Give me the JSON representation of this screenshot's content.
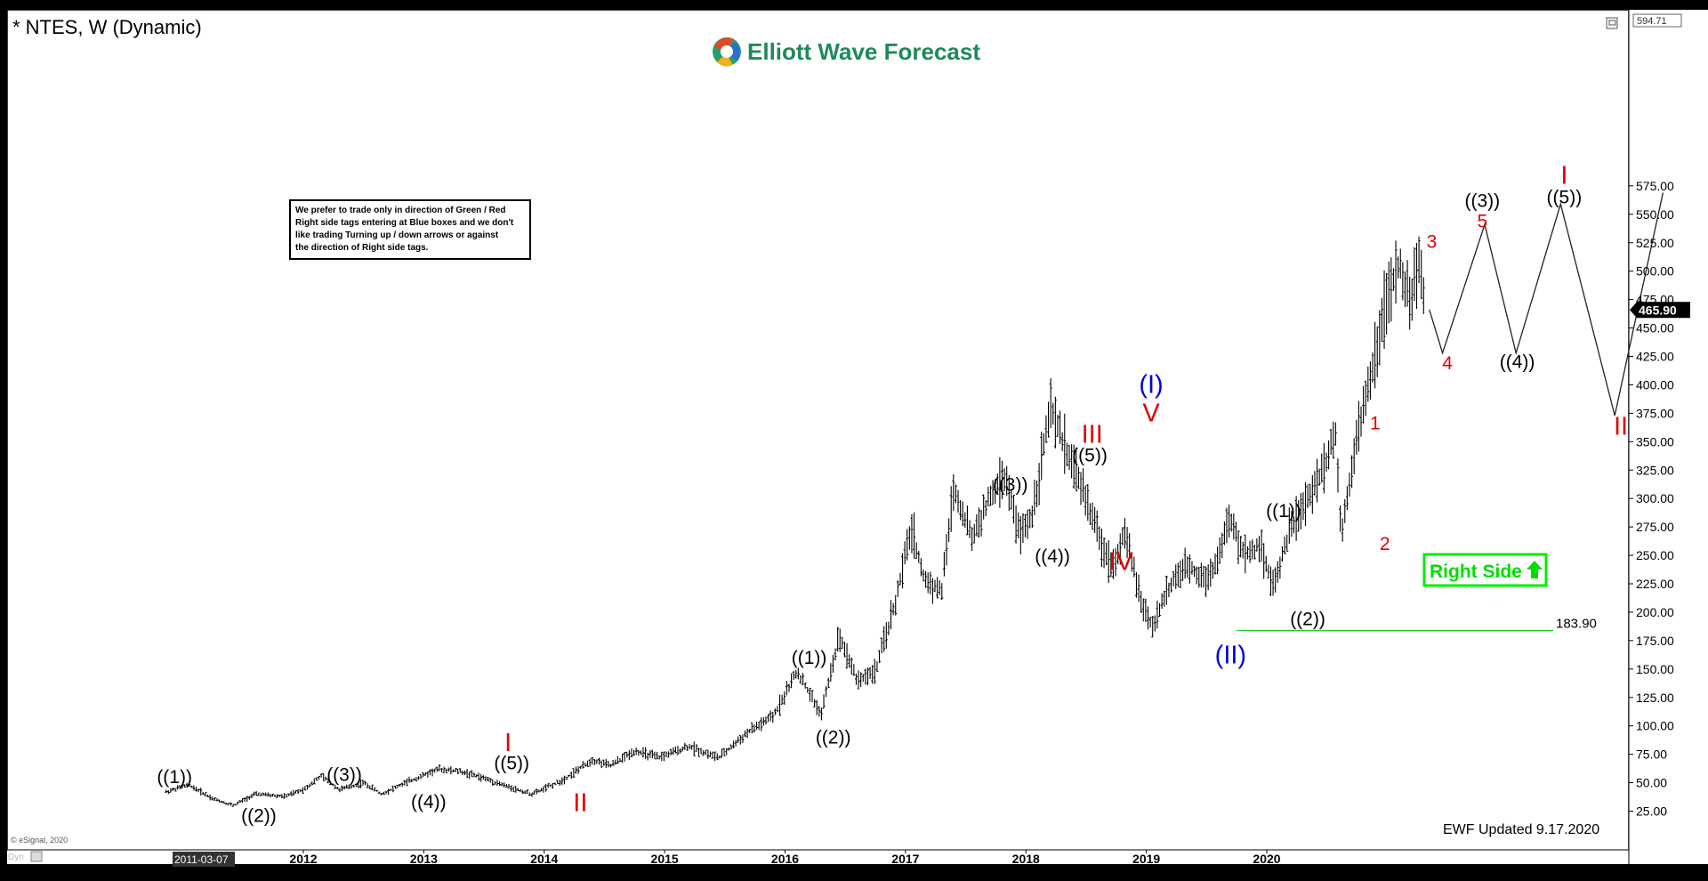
{
  "header": {
    "symbol_title": "* NTES, W (Dynamic)",
    "brand": "Elliott Wave Forecast",
    "disclaimer_lines": [
      "We prefer to trade only in direction of Green / Red",
      "Right side tags entering at Blue boxes and we don't",
      "like trading Turning up / down arrows or against",
      "the direction of Right side tags."
    ],
    "footer_updated": "EWF Updated 9.17.2020",
    "copyright": "© eSignal, 2020",
    "dyn_label": "Dyn",
    "cursor_date": "2011-03-07"
  },
  "colors": {
    "background": "#ffffff",
    "frame": "#000000",
    "price_bars": "#000000",
    "wave_label_black": "#000000",
    "wave_label_red": "#e00000",
    "wave_label_blue": "#0000dd",
    "support_line": "#22cc22",
    "right_side_tag": "#00ee00",
    "brand_text": "#1e8a5a"
  },
  "chart_data": {
    "type": "line",
    "title": "* NTES, W (Dynamic)",
    "xlabel": "",
    "ylabel": "",
    "ylim": [
      13,
      595
    ],
    "grid": false,
    "x_tick_labels": [
      "2012",
      "2013",
      "2014",
      "2015",
      "2016",
      "2017",
      "2018",
      "2019",
      "2020"
    ],
    "x_tick_values": [
      2012,
      2013,
      2014,
      2015,
      2016,
      2017,
      2018,
      2019,
      2020
    ],
    "y_tick_labels": [
      "25.00",
      "50.00",
      "75.00",
      "100.00",
      "125.00",
      "150.00",
      "175.00",
      "200.00",
      "225.00",
      "250.00",
      "275.00",
      "300.00",
      "325.00",
      "350.00",
      "375.00",
      "400.00",
      "425.00",
      "450.00",
      "475.00",
      "500.00",
      "525.00",
      "550.00",
      "575.00"
    ],
    "y_tick_values": [
      25,
      50,
      75,
      100,
      125,
      150,
      175,
      200,
      225,
      250,
      275,
      300,
      325,
      350,
      375,
      400,
      425,
      450,
      475,
      500,
      525,
      550,
      575
    ],
    "price_path": [
      {
        "t": 2010.86,
        "p": 42
      },
      {
        "t": 2011.05,
        "p": 48
      },
      {
        "t": 2011.25,
        "p": 36
      },
      {
        "t": 2011.42,
        "p": 30
      },
      {
        "t": 2011.6,
        "p": 40
      },
      {
        "t": 2011.85,
        "p": 38
      },
      {
        "t": 2012.0,
        "p": 44
      },
      {
        "t": 2012.15,
        "p": 56
      },
      {
        "t": 2012.3,
        "p": 44
      },
      {
        "t": 2012.5,
        "p": 50
      },
      {
        "t": 2012.65,
        "p": 40
      },
      {
        "t": 2012.85,
        "p": 50
      },
      {
        "t": 2013.12,
        "p": 62
      },
      {
        "t": 2013.3,
        "p": 60
      },
      {
        "t": 2013.5,
        "p": 54
      },
      {
        "t": 2013.77,
        "p": 44
      },
      {
        "t": 2013.9,
        "p": 40
      },
      {
        "t": 2014.15,
        "p": 52
      },
      {
        "t": 2014.4,
        "p": 70
      },
      {
        "t": 2014.55,
        "p": 65
      },
      {
        "t": 2014.75,
        "p": 78
      },
      {
        "t": 2014.95,
        "p": 72
      },
      {
        "t": 2015.2,
        "p": 82
      },
      {
        "t": 2015.45,
        "p": 72
      },
      {
        "t": 2015.7,
        "p": 95
      },
      {
        "t": 2015.9,
        "p": 108
      },
      {
        "t": 2016.1,
        "p": 148
      },
      {
        "t": 2016.3,
        "p": 110
      },
      {
        "t": 2016.45,
        "p": 180
      },
      {
        "t": 2016.6,
        "p": 140
      },
      {
        "t": 2016.75,
        "p": 148
      },
      {
        "t": 2016.92,
        "p": 210
      },
      {
        "t": 2017.05,
        "p": 275
      },
      {
        "t": 2017.15,
        "p": 230
      },
      {
        "t": 2017.3,
        "p": 218
      },
      {
        "t": 2017.4,
        "p": 310
      },
      {
        "t": 2017.55,
        "p": 265
      },
      {
        "t": 2017.7,
        "p": 300
      },
      {
        "t": 2017.82,
        "p": 320
      },
      {
        "t": 2017.95,
        "p": 268
      },
      {
        "t": 2018.05,
        "p": 285
      },
      {
        "t": 2018.2,
        "p": 378
      },
      {
        "t": 2018.35,
        "p": 340
      },
      {
        "t": 2018.5,
        "p": 300
      },
      {
        "t": 2018.62,
        "p": 262
      },
      {
        "t": 2018.72,
        "p": 240
      },
      {
        "t": 2018.82,
        "p": 270
      },
      {
        "t": 2018.97,
        "p": 205
      },
      {
        "t": 2019.05,
        "p": 188
      },
      {
        "t": 2019.2,
        "p": 225
      },
      {
        "t": 2019.35,
        "p": 240
      },
      {
        "t": 2019.5,
        "p": 230
      },
      {
        "t": 2019.6,
        "p": 248
      },
      {
        "t": 2019.68,
        "p": 282
      },
      {
        "t": 2019.82,
        "p": 250
      },
      {
        "t": 2019.95,
        "p": 260
      },
      {
        "t": 2020.05,
        "p": 222
      },
      {
        "t": 2020.2,
        "p": 275
      },
      {
        "t": 2020.35,
        "p": 300
      },
      {
        "t": 2020.48,
        "p": 330
      },
      {
        "t": 2020.57,
        "p": 360
      },
      {
        "t": 2020.62,
        "p": 268
      },
      {
        "t": 2020.72,
        "p": 340
      },
      {
        "t": 2020.85,
        "p": 400
      },
      {
        "t": 2020.96,
        "p": 460
      },
      {
        "t": 2021.1,
        "p": 505
      },
      {
        "t": 2021.2,
        "p": 470
      },
      {
        "t": 2021.26,
        "p": 518
      },
      {
        "t": 2021.31,
        "p": 466
      }
    ],
    "series": [
      {
        "name": "projection",
        "points": [
          {
            "t": 2021.35,
            "p": 466
          },
          {
            "t": 2021.46,
            "p": 428
          },
          {
            "t": 2021.81,
            "p": 541
          },
          {
            "t": 2022.07,
            "p": 428
          },
          {
            "t": 2022.44,
            "p": 559
          },
          {
            "t": 2022.89,
            "p": 373
          },
          {
            "t": 2023.29,
            "p": 569
          }
        ]
      }
    ],
    "annotations": [
      {
        "text": "((1))",
        "t": 2010.93,
        "p": 54,
        "color": "black",
        "size": "m"
      },
      {
        "text": "((2))",
        "t": 2011.63,
        "p": 20,
        "color": "black",
        "size": "m"
      },
      {
        "text": "((3))",
        "t": 2012.34,
        "p": 56,
        "color": "black",
        "size": "m"
      },
      {
        "text": "((4))",
        "t": 2013.04,
        "p": 32,
        "color": "black",
        "size": "m"
      },
      {
        "text": "((5))",
        "t": 2013.73,
        "p": 66,
        "color": "black",
        "size": "m"
      },
      {
        "text": "I",
        "t": 2013.7,
        "p": 84,
        "color": "red",
        "size": "l"
      },
      {
        "text": "II",
        "t": 2014.3,
        "p": 31,
        "color": "red",
        "size": "l"
      },
      {
        "text": "((1))",
        "t": 2016.2,
        "p": 159,
        "color": "black",
        "size": "m"
      },
      {
        "text": "((2))",
        "t": 2016.4,
        "p": 89,
        "color": "black",
        "size": "m"
      },
      {
        "text": "((3))",
        "t": 2017.87,
        "p": 311,
        "color": "black",
        "size": "m"
      },
      {
        "text": "((4))",
        "t": 2018.22,
        "p": 248,
        "color": "black",
        "size": "m"
      },
      {
        "text": "((5))",
        "t": 2018.53,
        "p": 337,
        "color": "black",
        "size": "m"
      },
      {
        "text": "III",
        "t": 2018.55,
        "p": 355,
        "color": "red",
        "size": "l"
      },
      {
        "text": "IV",
        "t": 2018.79,
        "p": 243,
        "color": "red",
        "size": "l"
      },
      {
        "text": "(I)",
        "t": 2019.04,
        "p": 399,
        "color": "blue",
        "size": "l"
      },
      {
        "text": "V",
        "t": 2019.04,
        "p": 374,
        "color": "red",
        "size": "l"
      },
      {
        "text": "(II)",
        "t": 2019.7,
        "p": 161,
        "color": "blue",
        "size": "l"
      },
      {
        "text": "((1))",
        "t": 2020.14,
        "p": 288,
        "color": "black",
        "size": "m"
      },
      {
        "text": "((2))",
        "t": 2020.34,
        "p": 193,
        "color": "black",
        "size": "m"
      },
      {
        "text": "1",
        "t": 2020.9,
        "p": 365,
        "color": "red",
        "size": "m"
      },
      {
        "text": "2",
        "t": 2020.98,
        "p": 259,
        "color": "red",
        "size": "m"
      },
      {
        "text": "3",
        "t": 2021.37,
        "p": 525,
        "color": "red",
        "size": "m"
      },
      {
        "text": "4",
        "t": 2021.5,
        "p": 418,
        "color": "red",
        "size": "m"
      },
      {
        "text": "((3))",
        "t": 2021.79,
        "p": 561,
        "color": "black",
        "size": "m"
      },
      {
        "text": "5",
        "t": 2021.79,
        "p": 543,
        "color": "red",
        "size": "m"
      },
      {
        "text": "((4))",
        "t": 2022.08,
        "p": 419,
        "color": "black",
        "size": "m"
      },
      {
        "text": "I",
        "t": 2022.47,
        "p": 583,
        "color": "red",
        "size": "l"
      },
      {
        "text": "((5))",
        "t": 2022.47,
        "p": 564,
        "color": "black",
        "size": "m"
      },
      {
        "text": "II",
        "t": 2022.94,
        "p": 362,
        "color": "red",
        "size": "l"
      }
    ],
    "last_price": "465.90",
    "top_price": "594.71",
    "support_level": "183.90",
    "support_start_t": 2019.75,
    "right_side_label": "Right Side"
  }
}
